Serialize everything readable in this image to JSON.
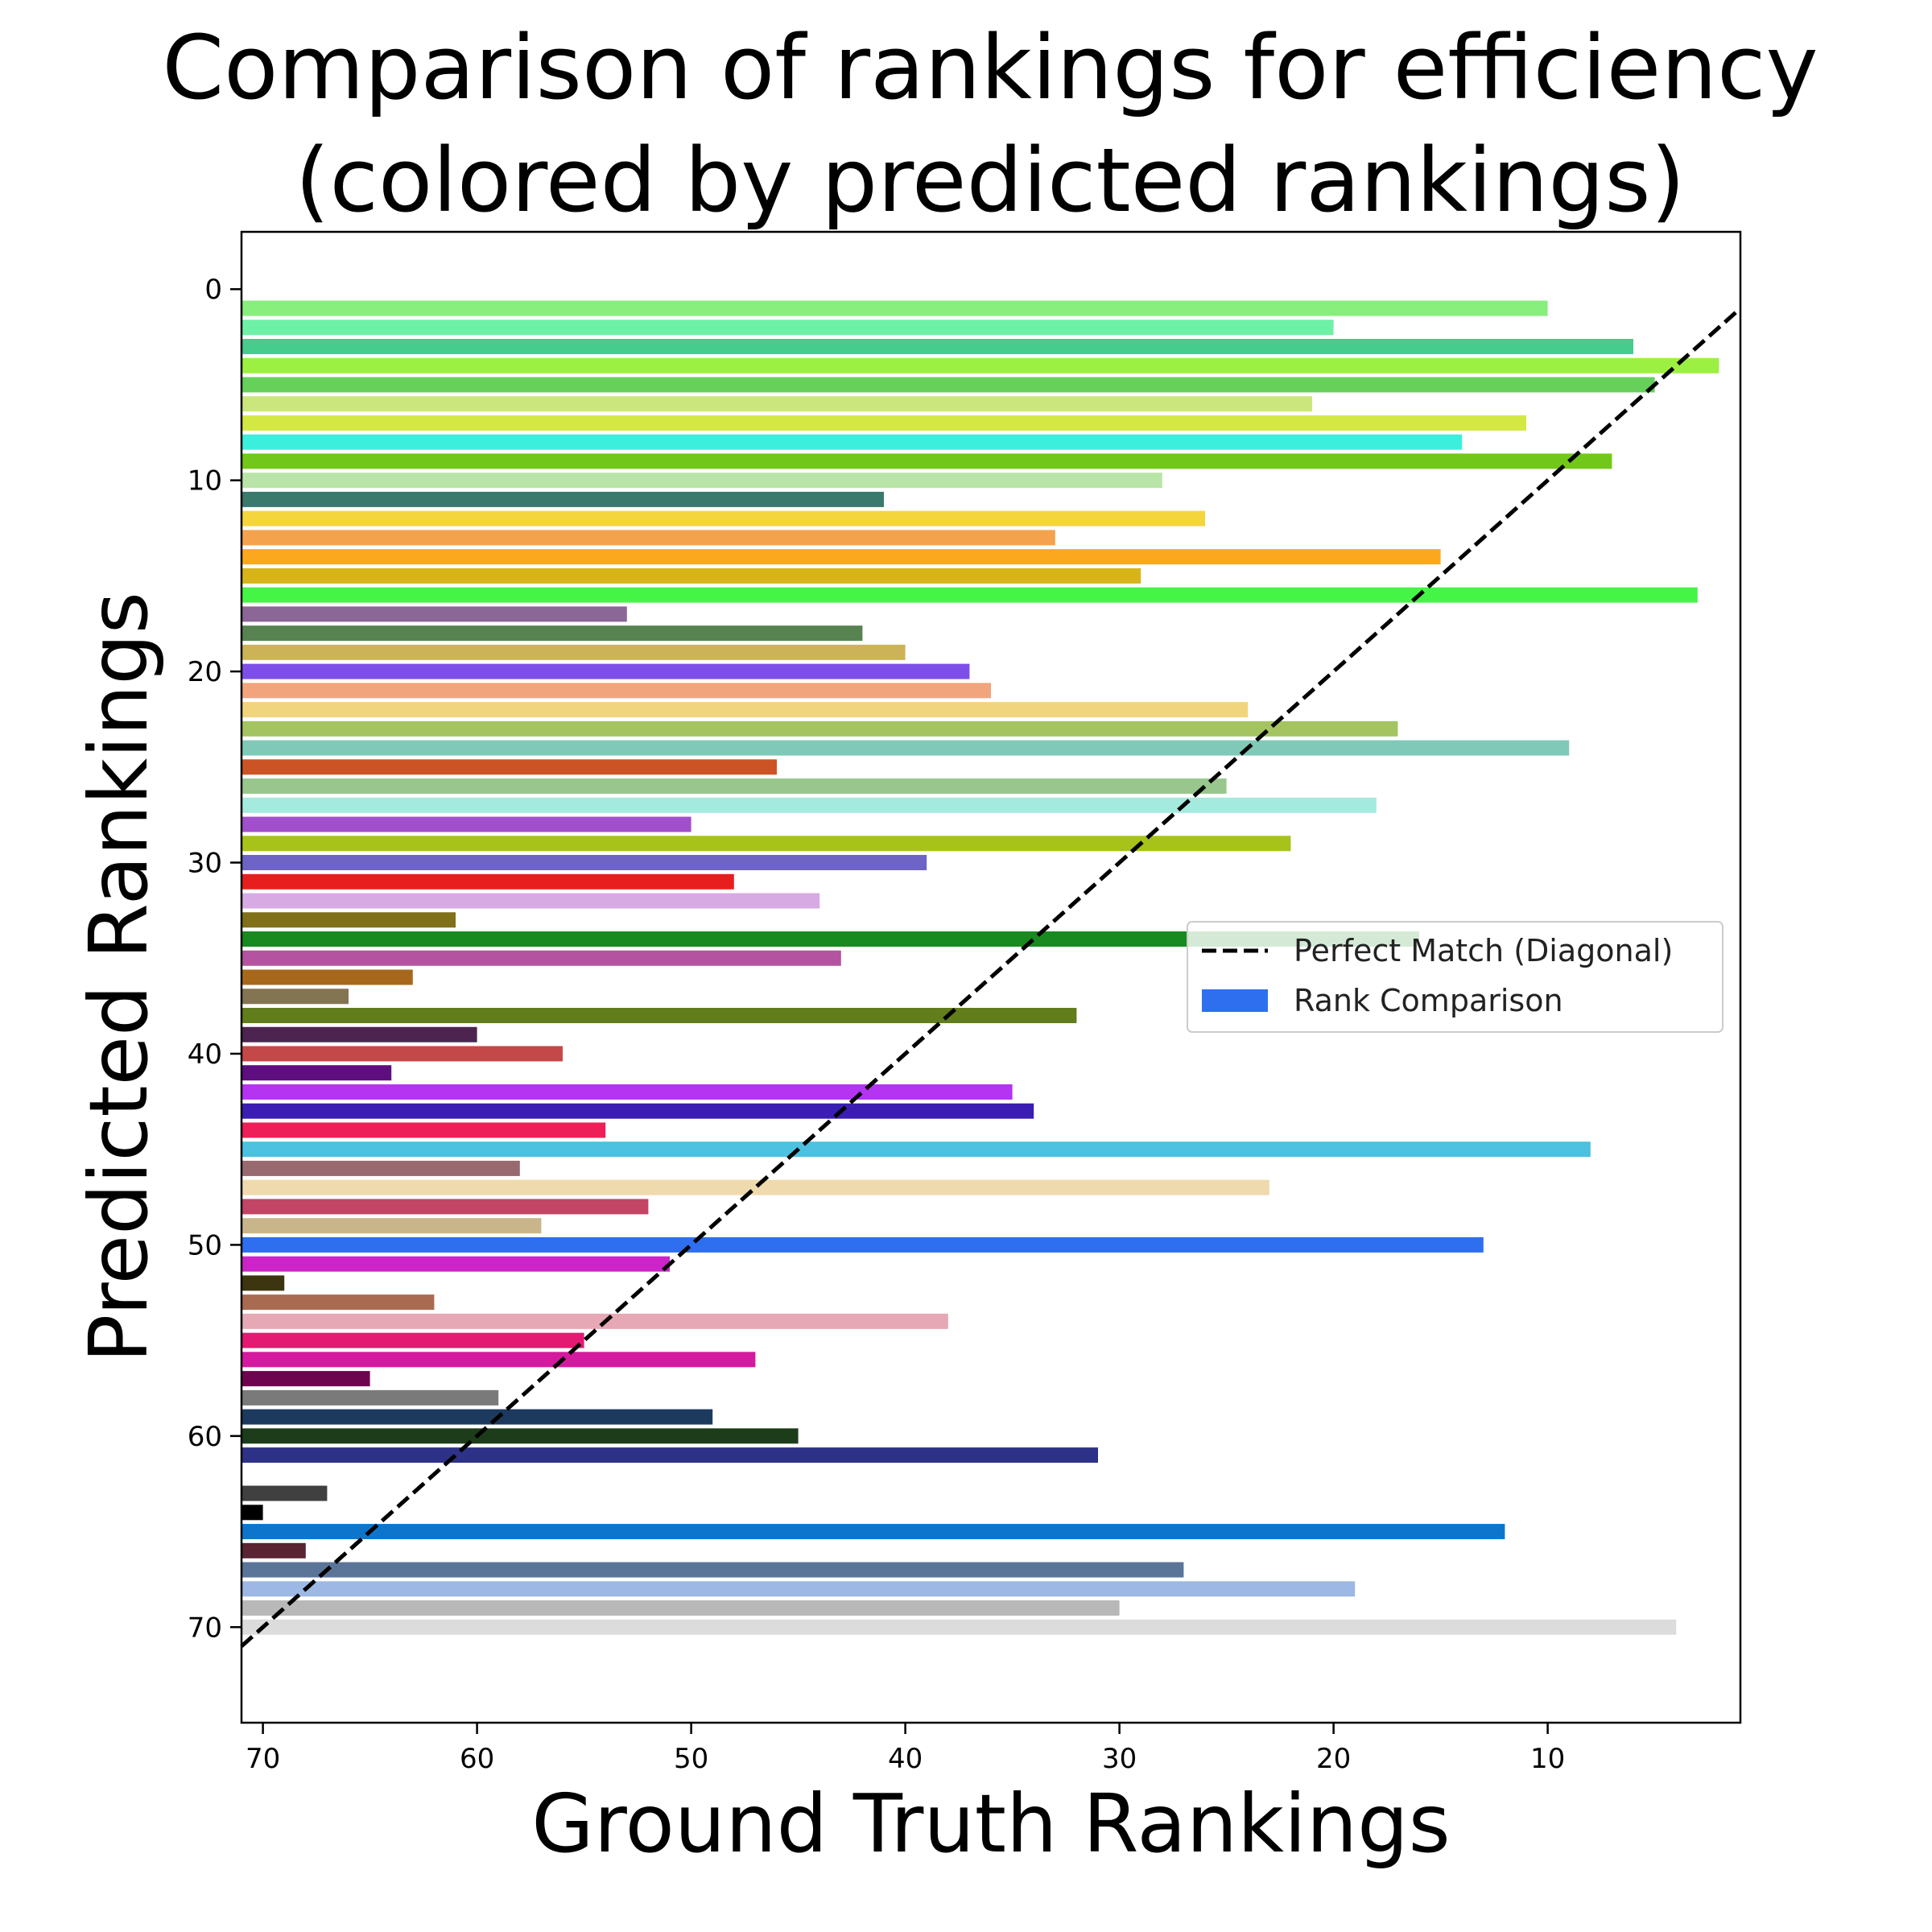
{
  "chart_data": {
    "type": "bar",
    "orientation": "horizontal",
    "title": "Comparison of rankings for efficiency\n(colored by predicted rankings)",
    "xlabel": "Ground Truth Rankings",
    "ylabel": "Predicted Rankings",
    "xlim": [
      71,
      1
    ],
    "ylim": [
      75,
      -3
    ],
    "x_inverted": true,
    "y_inverted": true,
    "xticks": [
      70,
      60,
      50,
      40,
      30,
      20,
      10
    ],
    "yticks": [
      0,
      10,
      20,
      30,
      40,
      50,
      60,
      70
    ],
    "grid": false,
    "legend": {
      "placement": "center-right",
      "entries": [
        {
          "label": "Perfect Match (Diagonal)",
          "kind": "dashed-line",
          "color": "#000000"
        },
        {
          "label": "Rank Comparison",
          "kind": "patch",
          "color": "#2e6ff0"
        }
      ]
    },
    "diagonal": {
      "from": [
        71,
        71
      ],
      "to": [
        1,
        1
      ],
      "style": "dashed",
      "color": "#000000"
    },
    "bars": [
      {
        "predicted": 1,
        "ground_truth": 10,
        "color": "#88ee7c"
      },
      {
        "predicted": 2,
        "ground_truth": 20,
        "color": "#6ff0a7"
      },
      {
        "predicted": 3,
        "ground_truth": 6,
        "color": "#46cc8c"
      },
      {
        "predicted": 4,
        "ground_truth": 2,
        "color": "#9cf041"
      },
      {
        "predicted": 5,
        "ground_truth": 5,
        "color": "#66d05a"
      },
      {
        "predicted": 6,
        "ground_truth": 21,
        "color": "#cce67e"
      },
      {
        "predicted": 7,
        "ground_truth": 11,
        "color": "#d4e844"
      },
      {
        "predicted": 8,
        "ground_truth": 14,
        "color": "#3cefdd"
      },
      {
        "predicted": 9,
        "ground_truth": 7,
        "color": "#72c81a"
      },
      {
        "predicted": 10,
        "ground_truth": 28,
        "color": "#b8e4a8"
      },
      {
        "predicted": 11,
        "ground_truth": 41,
        "color": "#3a7a6c"
      },
      {
        "predicted": 12,
        "ground_truth": 26,
        "color": "#f5d53c"
      },
      {
        "predicted": 13,
        "ground_truth": 33,
        "color": "#f4a24c"
      },
      {
        "predicted": 14,
        "ground_truth": 15,
        "color": "#fba81f"
      },
      {
        "predicted": 15,
        "ground_truth": 29,
        "color": "#d7b41a"
      },
      {
        "predicted": 16,
        "ground_truth": 3,
        "color": "#45f545"
      },
      {
        "predicted": 17,
        "ground_truth": 53,
        "color": "#8b6797"
      },
      {
        "predicted": 18,
        "ground_truth": 42,
        "color": "#578351"
      },
      {
        "predicted": 19,
        "ground_truth": 40,
        "color": "#ccb357"
      },
      {
        "predicted": 20,
        "ground_truth": 37,
        "color": "#7e4fe8"
      },
      {
        "predicted": 21,
        "ground_truth": 36,
        "color": "#f2a57c"
      },
      {
        "predicted": 22,
        "ground_truth": 24,
        "color": "#f1d57e"
      },
      {
        "predicted": 23,
        "ground_truth": 17,
        "color": "#a4c461"
      },
      {
        "predicted": 24,
        "ground_truth": 9,
        "color": "#80c9b8"
      },
      {
        "predicted": 25,
        "ground_truth": 46,
        "color": "#cc5424"
      },
      {
        "predicted": 26,
        "ground_truth": 25,
        "color": "#98c68d"
      },
      {
        "predicted": 27,
        "ground_truth": 18,
        "color": "#a5eade"
      },
      {
        "predicted": 28,
        "ground_truth": 50,
        "color": "#a24fcb"
      },
      {
        "predicted": 29,
        "ground_truth": 22,
        "color": "#a7c31a"
      },
      {
        "predicted": 30,
        "ground_truth": 39,
        "color": "#6d64c6"
      },
      {
        "predicted": 31,
        "ground_truth": 48,
        "color": "#e81e1e"
      },
      {
        "predicted": 32,
        "ground_truth": 44,
        "color": "#d7aae4"
      },
      {
        "predicted": 33,
        "ground_truth": 61,
        "color": "#807019"
      },
      {
        "predicted": 34,
        "ground_truth": 16,
        "color": "#188a20"
      },
      {
        "predicted": 35,
        "ground_truth": 43,
        "color": "#b453a0"
      },
      {
        "predicted": 36,
        "ground_truth": 63,
        "color": "#a8681c"
      },
      {
        "predicted": 37,
        "ground_truth": 66,
        "color": "#847552"
      },
      {
        "predicted": 38,
        "ground_truth": 32,
        "color": "#617d1c"
      },
      {
        "predicted": 39,
        "ground_truth": 60,
        "color": "#4d2450"
      },
      {
        "predicted": 40,
        "ground_truth": 56,
        "color": "#c54848"
      },
      {
        "predicted": 41,
        "ground_truth": 64,
        "color": "#5f0e80"
      },
      {
        "predicted": 42,
        "ground_truth": 35,
        "color": "#b434f2"
      },
      {
        "predicted": 43,
        "ground_truth": 34,
        "color": "#3c1db4"
      },
      {
        "predicted": 44,
        "ground_truth": 54,
        "color": "#ee1e58"
      },
      {
        "predicted": 45,
        "ground_truth": 8,
        "color": "#4cc1e0"
      },
      {
        "predicted": 46,
        "ground_truth": 58,
        "color": "#986a70"
      },
      {
        "predicted": 47,
        "ground_truth": 23,
        "color": "#efdaad"
      },
      {
        "predicted": 48,
        "ground_truth": 52,
        "color": "#c24566"
      },
      {
        "predicted": 49,
        "ground_truth": 57,
        "color": "#c8b68a"
      },
      {
        "predicted": 50,
        "ground_truth": 13,
        "color": "#2e6ff0"
      },
      {
        "predicted": 51,
        "ground_truth": 51,
        "color": "#cc24c8"
      },
      {
        "predicted": 52,
        "ground_truth": 69,
        "color": "#3c3510"
      },
      {
        "predicted": 53,
        "ground_truth": 62,
        "color": "#a86a50"
      },
      {
        "predicted": 54,
        "ground_truth": 38,
        "color": "#e6a8b4"
      },
      {
        "predicted": 55,
        "ground_truth": 55,
        "color": "#e41a72"
      },
      {
        "predicted": 56,
        "ground_truth": 47,
        "color": "#d41a9e"
      },
      {
        "predicted": 57,
        "ground_truth": 65,
        "color": "#6e0450"
      },
      {
        "predicted": 58,
        "ground_truth": 59,
        "color": "#7a7a7a"
      },
      {
        "predicted": 59,
        "ground_truth": 49,
        "color": "#1c3a5e"
      },
      {
        "predicted": 60,
        "ground_truth": 45,
        "color": "#1d3d1a"
      },
      {
        "predicted": 61,
        "ground_truth": 31,
        "color": "#2d3288"
      },
      {
        "predicted": 63,
        "ground_truth": 67,
        "color": "#404040"
      },
      {
        "predicted": 64,
        "ground_truth": 70,
        "color": "#000000"
      },
      {
        "predicted": 65,
        "ground_truth": 12,
        "color": "#0d76cc"
      },
      {
        "predicted": 66,
        "ground_truth": 68,
        "color": "#5a2432"
      },
      {
        "predicted": 67,
        "ground_truth": 27,
        "color": "#5b7599"
      },
      {
        "predicted": 68,
        "ground_truth": 19,
        "color": "#9db8e4"
      },
      {
        "predicted": 69,
        "ground_truth": 30,
        "color": "#b8b8b8"
      },
      {
        "predicted": 70,
        "ground_truth": 4,
        "color": "#dcdcdc"
      }
    ]
  }
}
